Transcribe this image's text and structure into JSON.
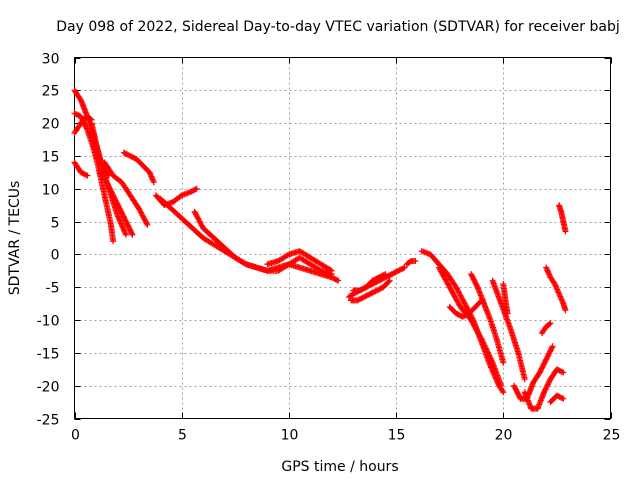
{
  "chart_data": {
    "type": "scatter",
    "title": "Day 098 of 2022, Sidereal Day-to-day VTEC variation (SDTVAR) for receiver babj",
    "xlabel": "GPS time / hours",
    "ylabel": "SDTVAR / TECUs",
    "xlim": [
      0,
      25
    ],
    "ylim": [
      -25,
      30
    ],
    "xticks": [
      0,
      5,
      10,
      15,
      20,
      25
    ],
    "yticks": [
      -25,
      -20,
      -15,
      -10,
      -5,
      0,
      5,
      10,
      15,
      20,
      25,
      30
    ],
    "grid": true,
    "marker": "+",
    "color": "#ff0000",
    "series": [
      {
        "name": "s1",
        "x": [
          0.0,
          0.3,
          0.6,
          0.9,
          1.2,
          1.5,
          1.8,
          2.0,
          2.2,
          2.4
        ],
        "y": [
          25.0,
          23.5,
          21.0,
          18.0,
          14.5,
          11.0,
          8.0,
          6.0,
          4.5,
          3.0
        ]
      },
      {
        "name": "s2",
        "x": [
          0.0,
          0.3,
          0.6,
          0.9,
          1.1,
          1.3,
          1.5,
          1.7,
          1.8
        ],
        "y": [
          21.5,
          21.0,
          19.0,
          16.0,
          13.5,
          10.5,
          7.5,
          4.5,
          2.0
        ]
      },
      {
        "name": "s3",
        "x": [
          0.0,
          0.2,
          0.4,
          0.6,
          0.8
        ],
        "y": [
          18.5,
          19.5,
          20.5,
          21.0,
          20.5
        ]
      },
      {
        "name": "s4",
        "x": [
          0.0,
          0.3,
          0.6
        ],
        "y": [
          14.0,
          12.5,
          12.0
        ]
      },
      {
        "name": "s5",
        "x": [
          0.8,
          1.0,
          1.2,
          1.4,
          1.6
        ],
        "y": [
          20.0,
          17.0,
          14.5,
          13.0,
          12.0
        ]
      },
      {
        "name": "s6",
        "x": [
          1.2,
          1.5,
          1.8,
          2.1,
          2.4,
          2.7
        ],
        "y": [
          12.5,
          11.0,
          9.0,
          7.0,
          5.0,
          3.0
        ]
      },
      {
        "name": "s7",
        "x": [
          1.4,
          1.8,
          2.2,
          2.6,
          3.0,
          3.4
        ],
        "y": [
          14.0,
          12.0,
          11.0,
          9.0,
          7.0,
          4.5
        ]
      },
      {
        "name": "s8",
        "x": [
          2.3,
          2.6,
          2.9,
          3.2,
          3.5,
          3.7
        ],
        "y": [
          15.5,
          15.0,
          14.5,
          13.5,
          12.5,
          11.0
        ]
      },
      {
        "name": "s9",
        "x": [
          3.8,
          4.2,
          4.6,
          5.0,
          5.4,
          5.7
        ],
        "y": [
          9.0,
          7.5,
          8.0,
          9.0,
          9.5,
          10.0
        ]
      },
      {
        "name": "s10",
        "x": [
          4.0,
          4.5,
          5.0,
          5.5,
          6.0,
          6.5,
          7.0,
          7.5,
          8.0,
          8.5,
          9.0,
          9.5,
          10.0,
          10.5,
          11.0,
          11.5,
          12.0,
          12.3
        ],
        "y": [
          8.5,
          7.0,
          5.5,
          4.0,
          2.5,
          1.5,
          0.5,
          -0.5,
          -1.5,
          -2.0,
          -2.5,
          -2.0,
          -1.5,
          -2.0,
          -2.5,
          -3.0,
          -3.5,
          -4.0
        ]
      },
      {
        "name": "s11",
        "x": [
          5.6,
          6.0,
          6.5,
          7.0,
          7.5,
          8.0,
          8.5,
          9.0,
          9.5,
          10.0,
          10.5,
          11.0,
          11.5,
          12.0
        ],
        "y": [
          6.5,
          4.0,
          2.5,
          1.0,
          -0.5,
          -1.5,
          -2.0,
          -2.5,
          -2.5,
          -1.5,
          -0.5,
          -1.5,
          -2.5,
          -3.0
        ]
      },
      {
        "name": "s12",
        "x": [
          9.0,
          9.5,
          10.0,
          10.5,
          11.0,
          11.5,
          12.0
        ],
        "y": [
          -1.5,
          -1.0,
          0.0,
          0.5,
          -0.5,
          -1.5,
          -2.5
        ]
      },
      {
        "name": "s13",
        "x": [
          12.8,
          13.0,
          13.3,
          13.6,
          13.9,
          14.2,
          14.5,
          14.8,
          15.1,
          15.4
        ],
        "y": [
          -6.5,
          -6.0,
          -5.5,
          -5.0,
          -4.5,
          -4.0,
          -3.5,
          -3.0,
          -2.5,
          -2.0
        ]
      },
      {
        "name": "s14",
        "x": [
          12.9,
          13.2,
          13.5,
          13.8,
          14.1,
          14.4,
          14.7
        ],
        "y": [
          -7.0,
          -7.0,
          -6.5,
          -6.0,
          -5.5,
          -5.0,
          -4.0
        ]
      },
      {
        "name": "s15",
        "x": [
          13.0,
          13.3,
          13.6,
          13.9,
          14.2,
          14.5
        ],
        "y": [
          -5.5,
          -5.5,
          -5.0,
          -4.0,
          -3.5,
          -3.0
        ]
      },
      {
        "name": "s16",
        "x": [
          15.5,
          15.7,
          15.9
        ],
        "y": [
          -1.5,
          -1.0,
          -1.0
        ]
      },
      {
        "name": "s17",
        "x": [
          16.2,
          16.6,
          17.0,
          17.4,
          17.8,
          18.2,
          18.6,
          19.0,
          19.4,
          19.8,
          20.0
        ],
        "y": [
          0.5,
          0.0,
          -1.5,
          -3.0,
          -5.0,
          -7.5,
          -10.0,
          -13.5,
          -17.0,
          -20.0,
          -21.0
        ]
      },
      {
        "name": "s18",
        "x": [
          17.0,
          17.5,
          18.0,
          18.5,
          19.0,
          19.5,
          19.9
        ],
        "y": [
          -2.0,
          -5.0,
          -8.0,
          -10.0,
          -13.0,
          -16.5,
          -20.0
        ]
      },
      {
        "name": "s19",
        "x": [
          17.5,
          17.8,
          18.1,
          18.4,
          18.7,
          19.0
        ],
        "y": [
          -8.0,
          -9.0,
          -9.5,
          -9.0,
          -8.0,
          -7.0
        ]
      },
      {
        "name": "s20",
        "x": [
          18.5,
          18.8,
          19.1,
          19.4,
          19.7,
          20.0
        ],
        "y": [
          -3.0,
          -5.0,
          -7.5,
          -10.0,
          -13.0,
          -16.5
        ]
      },
      {
        "name": "s21",
        "x": [
          19.5,
          19.9,
          20.3,
          20.7,
          21.0
        ],
        "y": [
          -4.0,
          -7.5,
          -11.0,
          -15.0,
          -19.0
        ]
      },
      {
        "name": "s22",
        "x": [
          20.0,
          20.1,
          20.2
        ],
        "y": [
          -4.5,
          -7.0,
          -9.0
        ]
      },
      {
        "name": "s23",
        "x": [
          20.5,
          20.8,
          21.1,
          21.4,
          21.7,
          22.0,
          22.3
        ],
        "y": [
          -20.0,
          -22.0,
          -22.0,
          -19.5,
          -18.0,
          -16.0,
          -14.0
        ]
      },
      {
        "name": "s24",
        "x": [
          21.0,
          21.3,
          21.6,
          21.9,
          22.2,
          22.5,
          22.8
        ],
        "y": [
          -21.0,
          -23.5,
          -23.5,
          -21.0,
          -19.0,
          -17.5,
          -18.0
        ]
      },
      {
        "name": "s25",
        "x": [
          22.0,
          22.2,
          22.4,
          22.6,
          22.8,
          22.9
        ],
        "y": [
          -2.0,
          -3.5,
          -4.5,
          -6.0,
          -7.5,
          -8.5
        ]
      },
      {
        "name": "s26",
        "x": [
          22.6,
          22.7,
          22.8,
          22.9
        ],
        "y": [
          7.5,
          6.5,
          5.0,
          3.5
        ]
      },
      {
        "name": "s27",
        "x": [
          22.2,
          22.5,
          22.8
        ],
        "y": [
          -22.5,
          -21.5,
          -22.0
        ]
      },
      {
        "name": "s28",
        "x": [
          21.8,
          22.0,
          22.2
        ],
        "y": [
          -12.0,
          -11.0,
          -10.5
        ]
      }
    ]
  }
}
